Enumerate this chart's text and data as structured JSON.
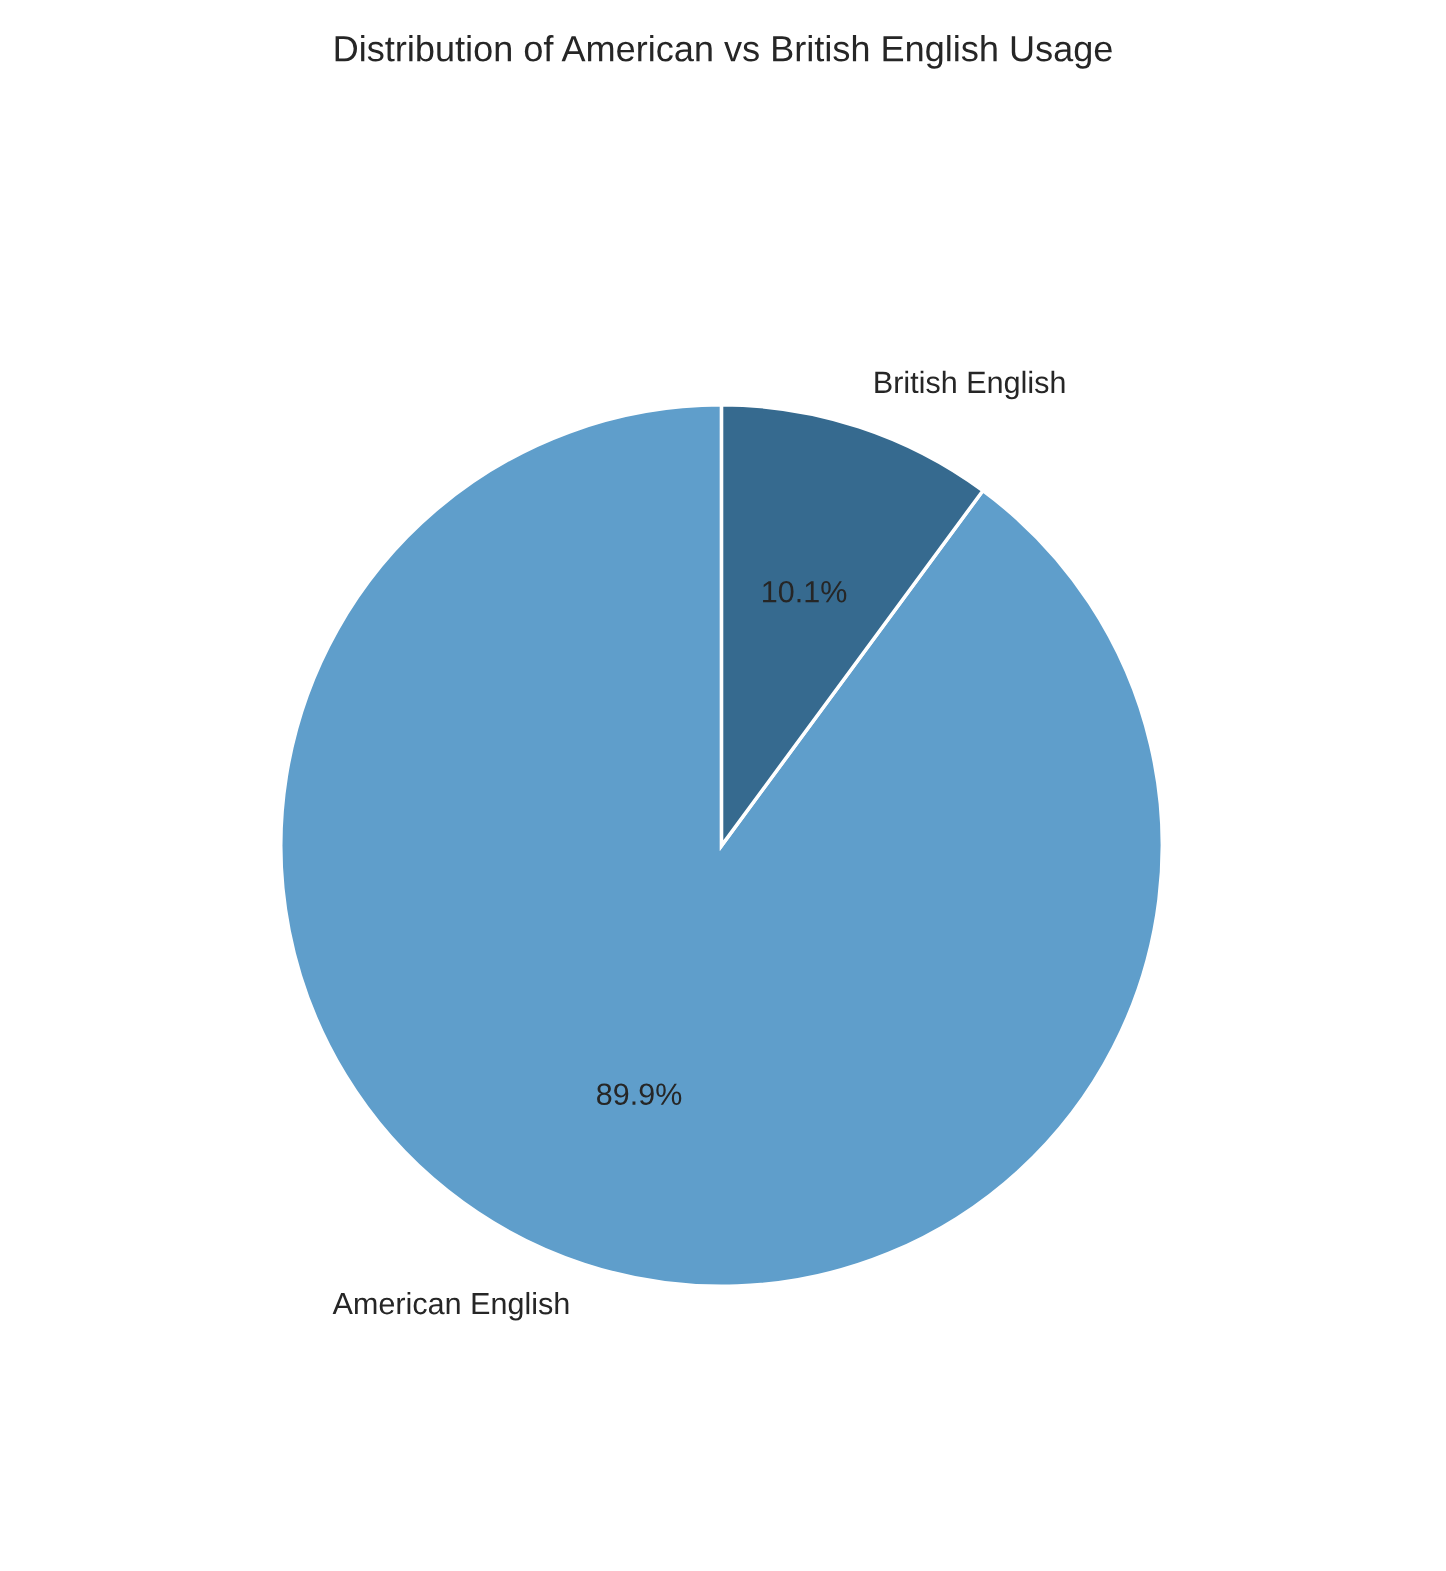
{
  "chart_data": {
    "type": "pie",
    "title": "Distribution of American vs British English Usage",
    "categories": [
      "American English",
      "British English"
    ],
    "values": [
      89.9,
      10.1
    ],
    "colors": [
      "#5f9ecb",
      "#366a8f"
    ],
    "value_labels": [
      "89.9%",
      "10.1%"
    ]
  }
}
